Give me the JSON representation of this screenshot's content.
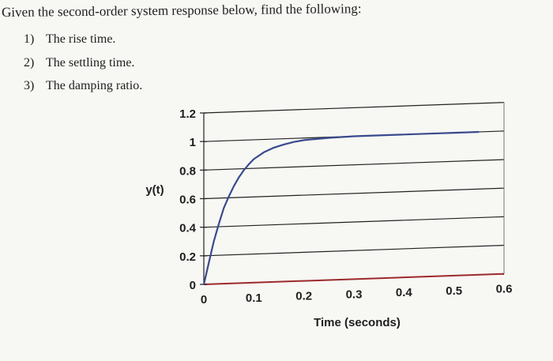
{
  "problem": {
    "statement": "Given the second-order system response below, find the following:",
    "items": [
      {
        "number": "1)",
        "text": "The rise time."
      },
      {
        "number": "2)",
        "text": "The settling time."
      },
      {
        "number": "3)",
        "text": "The damping ratio."
      }
    ]
  },
  "chart_data": {
    "type": "line",
    "title": "",
    "xlabel": "Time (seconds)",
    "ylabel": "y(t)",
    "xlim": [
      0,
      0.6
    ],
    "ylim": [
      0,
      1.2
    ],
    "xticks": [
      "0",
      "0.1",
      "0.2",
      "0.3",
      "0.4",
      "0.5",
      "0.6"
    ],
    "yticks": [
      "0",
      "0.2",
      "0.4",
      "0.6",
      "0.8",
      "1",
      "1.2"
    ],
    "grid": "horizontal",
    "colors": {
      "line": "#3a4a8c",
      "axis": "#9c2a2a",
      "grid": "#222222"
    },
    "series": [
      {
        "x": [
          0,
          0.01,
          0.02,
          0.03,
          0.04,
          0.05,
          0.06,
          0.07,
          0.08,
          0.09,
          0.1,
          0.12,
          0.14,
          0.16,
          0.18,
          0.2,
          0.25,
          0.3,
          0.35,
          0.4,
          0.45,
          0.5,
          0.55
        ],
        "y": [
          0,
          0.15,
          0.3,
          0.42,
          0.53,
          0.61,
          0.68,
          0.74,
          0.79,
          0.83,
          0.865,
          0.91,
          0.94,
          0.96,
          0.975,
          0.985,
          0.995,
          1.0,
          1.0,
          1.0,
          1.0,
          1.0,
          1.0
        ]
      }
    ]
  }
}
